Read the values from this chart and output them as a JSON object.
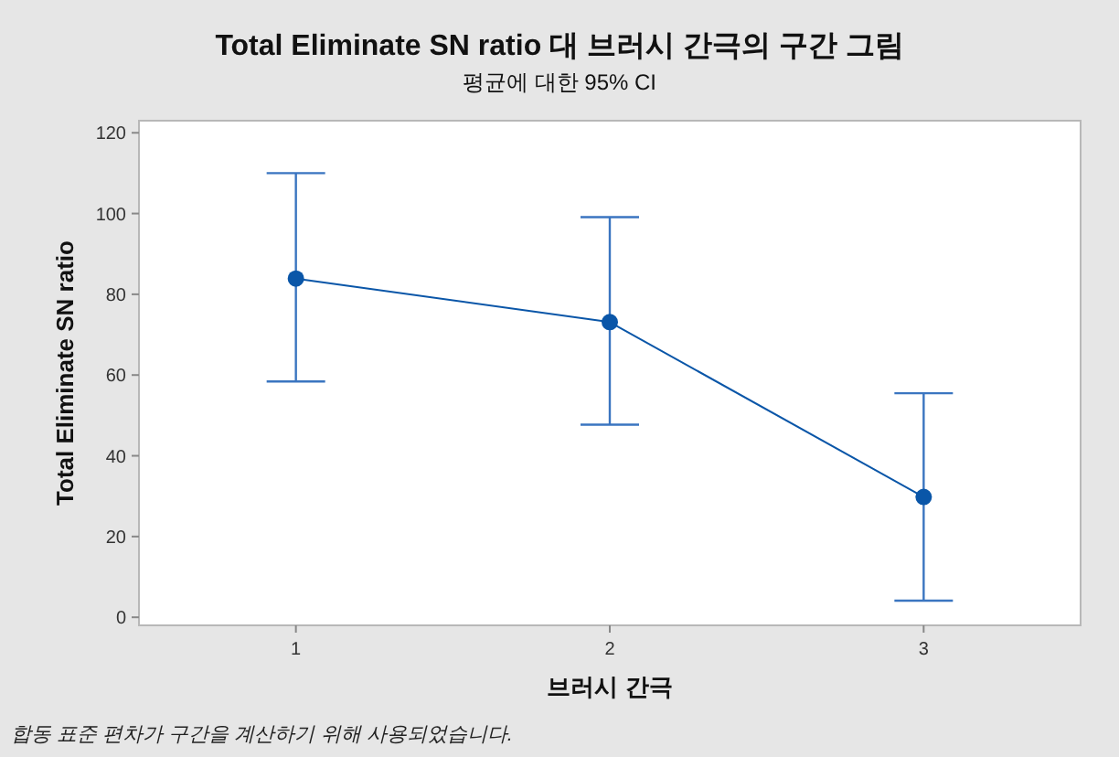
{
  "chart_data": {
    "type": "line",
    "title": "Total Eliminate SN ratio 대 브러시 간극의 구간 그림",
    "subtitle": "평균에 대한 95% CI",
    "xlabel": "브러시 간극",
    "ylabel": "Total Eliminate SN ratio",
    "annotations": [
      "합동 표준 편차가 구간을 계산하기 위해 사용되었습니다."
    ],
    "categories": [
      "1",
      "2",
      "3"
    ],
    "series": [
      {
        "color": "#0a56a8",
        "values": [
          83.9,
          73.1,
          29.8
        ],
        "errors": [
          [
            58.4,
            110
          ],
          [
            47.7,
            99.1
          ],
          [
            4.1,
            55.5
          ]
        ]
      }
    ],
    "ylim": [
      -2,
      123
    ],
    "yticks": [
      0,
      20,
      40,
      60,
      80,
      100,
      120
    ],
    "grid": false,
    "marker": "circle",
    "line_style": "solid"
  }
}
